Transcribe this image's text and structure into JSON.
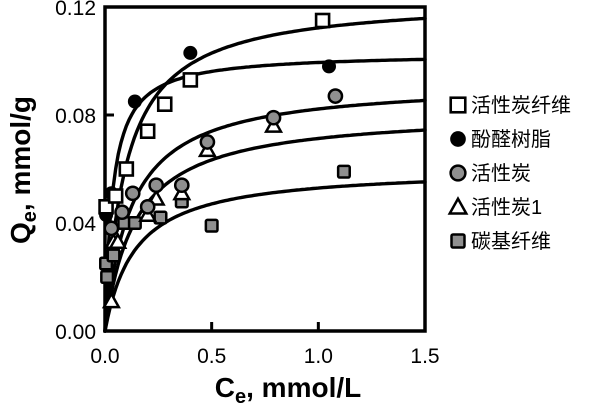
{
  "figure": {
    "name": "adsorption-isotherm-comparison",
    "background": "#ffffff"
  },
  "colors": {
    "black": "#000000",
    "gray_fill": "#8f8f8f",
    "white": "#ffffff"
  },
  "chart_data": {
    "type": "scatter",
    "title": "",
    "xlabel": {
      "prefix": "C",
      "sub": "e",
      "suffix": ", mmol/L"
    },
    "ylabel": {
      "prefix": "Q",
      "sub": "e",
      "suffix": ", mmol/g"
    },
    "xlim": [
      0,
      1.5
    ],
    "ylim": [
      0,
      0.12
    ],
    "grid": false,
    "legend_position": "right-outside",
    "x_ticks": [
      {
        "v": 0.0,
        "label": "0.0"
      },
      {
        "v": 0.5,
        "label": "0.5"
      },
      {
        "v": 1.0,
        "label": "1.0"
      },
      {
        "v": 1.5,
        "label": "1.5"
      }
    ],
    "y_ticks": [
      {
        "v": 0.0,
        "label": "0.00"
      },
      {
        "v": 0.04,
        "label": "0.04"
      },
      {
        "v": 0.08,
        "label": "0.08"
      },
      {
        "v": 0.12,
        "label": "0.12"
      }
    ],
    "series": [
      {
        "name": "活性炭纤维",
        "marker": "open-square",
        "langmuir_fit": {
          "qm": 0.1235,
          "k": 10
        },
        "points": [
          [
            0.005,
            0.046
          ],
          [
            0.05,
            0.05
          ],
          [
            0.1,
            0.06
          ],
          [
            0.2,
            0.074
          ],
          [
            0.28,
            0.084
          ],
          [
            0.4,
            0.093
          ],
          [
            1.02,
            0.115
          ]
        ]
      },
      {
        "name": "酚醛树脂",
        "marker": "filled-circle",
        "langmuir_fit": {
          "qm": 0.103,
          "k": 28
        },
        "points": [
          [
            0.005,
            0.043
          ],
          [
            0.03,
            0.051
          ],
          [
            0.14,
            0.085
          ],
          [
            0.4,
            0.103
          ],
          [
            1.05,
            0.098
          ]
        ]
      },
      {
        "name": "活性炭",
        "marker": "gray-circle",
        "langmuir_fit": {
          "qm": 0.0925,
          "k": 8
        },
        "points": [
          [
            0.03,
            0.038
          ],
          [
            0.08,
            0.044
          ],
          [
            0.13,
            0.051
          ],
          [
            0.2,
            0.046
          ],
          [
            0.24,
            0.054
          ],
          [
            0.36,
            0.054
          ],
          [
            0.48,
            0.07
          ],
          [
            0.79,
            0.079
          ],
          [
            1.08,
            0.087
          ]
        ]
      },
      {
        "name": "活性炭1",
        "marker": "open-triangle",
        "langmuir_fit": {
          "qm": 0.0815,
          "k": 7
        },
        "points": [
          [
            0.03,
            0.011
          ],
          [
            0.04,
            0.033
          ],
          [
            0.06,
            0.033
          ],
          [
            0.2,
            0.043
          ],
          [
            0.24,
            0.049
          ],
          [
            0.36,
            0.051
          ],
          [
            0.48,
            0.067
          ],
          [
            0.79,
            0.076
          ]
        ]
      },
      {
        "name": "碳基纤维",
        "marker": "gray-square",
        "langmuir_fit": {
          "qm": 0.0605,
          "k": 7
        },
        "points": [
          [
            0.005,
            0.025
          ],
          [
            0.01,
            0.02
          ],
          [
            0.04,
            0.028
          ],
          [
            0.09,
            0.04
          ],
          [
            0.14,
            0.04
          ],
          [
            0.26,
            0.042
          ],
          [
            0.36,
            0.048
          ],
          [
            0.5,
            0.039
          ],
          [
            1.12,
            0.059
          ]
        ]
      }
    ]
  }
}
